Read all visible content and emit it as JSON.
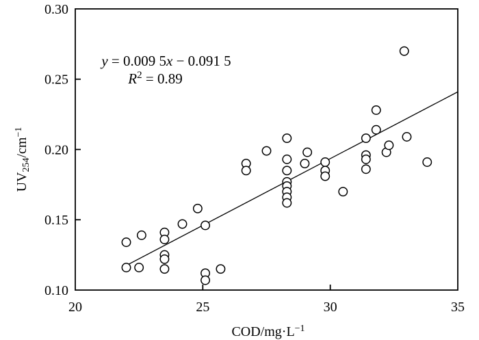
{
  "chart_data": {
    "type": "scatter",
    "title": "",
    "xlabel_parts": [
      {
        "t": "COD/mg·L"
      },
      {
        "t": "−1",
        "sup": 1
      }
    ],
    "ylabel_parts": [
      {
        "t": "UV"
      },
      {
        "t": "254",
        "sub": 1
      },
      {
        "t": "/cm"
      },
      {
        "t": "−1",
        "sup": 1
      }
    ],
    "xlim": [
      20,
      35
    ],
    "ylim": [
      0.1,
      0.3
    ],
    "xticks": [
      {
        "v": 20,
        "label": "20"
      },
      {
        "v": 25,
        "label": "25"
      },
      {
        "v": 30,
        "label": "30"
      },
      {
        "v": 35,
        "label": "35"
      }
    ],
    "yticks": [
      {
        "v": 0.1,
        "label": "0.10"
      },
      {
        "v": 0.15,
        "label": "0.15"
      },
      {
        "v": 0.2,
        "label": "0.20"
      },
      {
        "v": 0.25,
        "label": "0.25"
      },
      {
        "v": 0.3,
        "label": "0.30"
      }
    ],
    "xtick_marks_inner": [
      25,
      30
    ],
    "ytick_marks_inner": [
      0.15,
      0.2,
      0.25
    ],
    "grid": false,
    "frame_box": true,
    "annotation": {
      "line1_parts": [
        {
          "t": "y",
          "i": 1
        },
        {
          "t": " = 0.009 5"
        },
        {
          "t": "x",
          "i": 1
        },
        {
          "t": " − 0.091 5"
        }
      ],
      "line2_parts": [
        {
          "t": "R",
          "i": 1
        },
        {
          "t": "2",
          "sup": 1
        },
        {
          "t": " = 0.89"
        }
      ],
      "equation_text": "y = 0.009 5x − 0.091 5",
      "r_squared_text": "R2 = 0.89"
    },
    "trendline": {
      "slope": 0.0095,
      "intercept": -0.0915,
      "x_start": 21.9,
      "x_end": 35
    },
    "points": [
      [
        22.0,
        0.134
      ],
      [
        22.0,
        0.116
      ],
      [
        22.5,
        0.116
      ],
      [
        22.6,
        0.139
      ],
      [
        23.5,
        0.141
      ],
      [
        23.5,
        0.136
      ],
      [
        23.5,
        0.125
      ],
      [
        23.5,
        0.122
      ],
      [
        23.5,
        0.115
      ],
      [
        24.2,
        0.147
      ],
      [
        24.8,
        0.158
      ],
      [
        25.1,
        0.146
      ],
      [
        25.1,
        0.112
      ],
      [
        25.1,
        0.107
      ],
      [
        25.7,
        0.115
      ],
      [
        26.7,
        0.19
      ],
      [
        26.7,
        0.185
      ],
      [
        27.5,
        0.199
      ],
      [
        28.3,
        0.208
      ],
      [
        28.3,
        0.193
      ],
      [
        28.3,
        0.185
      ],
      [
        28.3,
        0.177
      ],
      [
        28.3,
        0.174
      ],
      [
        28.3,
        0.17
      ],
      [
        28.3,
        0.166
      ],
      [
        28.3,
        0.162
      ],
      [
        29.0,
        0.19
      ],
      [
        29.1,
        0.198
      ],
      [
        29.8,
        0.191
      ],
      [
        29.8,
        0.185
      ],
      [
        29.8,
        0.181
      ],
      [
        30.5,
        0.17
      ],
      [
        31.4,
        0.208
      ],
      [
        31.4,
        0.196
      ],
      [
        31.4,
        0.193
      ],
      [
        31.4,
        0.186
      ],
      [
        31.8,
        0.228
      ],
      [
        31.8,
        0.214
      ],
      [
        32.2,
        0.198
      ],
      [
        32.3,
        0.203
      ],
      [
        32.9,
        0.27
      ],
      [
        33.0,
        0.209
      ],
      [
        33.8,
        0.191
      ]
    ],
    "style": {
      "ink_color": "#000000",
      "background": "#ffffff",
      "marker_radius": 6.2,
      "marker_stroke_width": 1.5,
      "marker_fill": "#ffffff",
      "axis_stroke_width": 1.8,
      "trendline_width": 1.3,
      "tick_len": 8,
      "tick_label_size": 20,
      "axis_label_size": 20,
      "annotation_size": 21
    },
    "layout": {
      "plot_left": 110,
      "plot_top": 13,
      "plot_right": 669,
      "plot_bottom": 424,
      "annotation_line1_cx": 243,
      "annotation_line1_y": 96,
      "annotation_line2_cx": 227,
      "annotation_line2_y": 122,
      "xlabel_cx": 392,
      "xlabel_y": 491,
      "ylabel_cx": 38,
      "ylabel_cy": 233,
      "xtick_label_y": 455
    }
  }
}
